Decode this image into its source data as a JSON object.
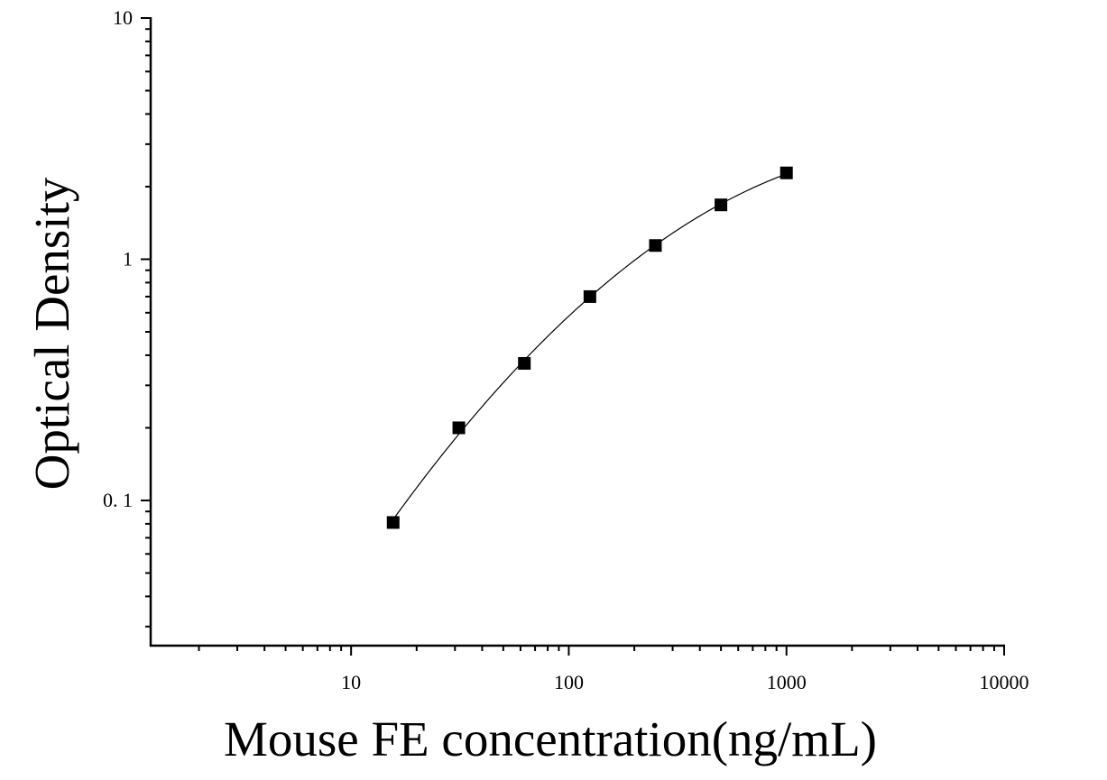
{
  "chart_data": {
    "type": "scatter",
    "title": "",
    "xlabel": "Mouse FE concentration(ng/mL)",
    "ylabel": "Optical Density",
    "xscale": "log",
    "yscale": "log",
    "xlim": [
      1.2,
      10000
    ],
    "ylim": [
      0.025,
      10
    ],
    "x_ticks": [
      {
        "value": 10,
        "label": "10"
      },
      {
        "value": 100,
        "label": "100"
      },
      {
        "value": 1000,
        "label": "1000"
      },
      {
        "value": 10000,
        "label": "10000"
      }
    ],
    "y_ticks": [
      {
        "value": 0.1,
        "label": "0. 1"
      },
      {
        "value": 1,
        "label": "1"
      },
      {
        "value": 10,
        "label": "10"
      }
    ],
    "grid": false,
    "marker": "square",
    "fit_line": true,
    "series": [
      {
        "x": [
          15.6,
          31.25,
          62.5,
          125,
          250,
          500,
          1000
        ],
        "y": [
          0.081,
          0.2,
          0.37,
          0.7,
          1.14,
          1.68,
          2.28
        ]
      }
    ],
    "colors": {
      "marker": "#000000",
      "line": "#000000"
    }
  }
}
